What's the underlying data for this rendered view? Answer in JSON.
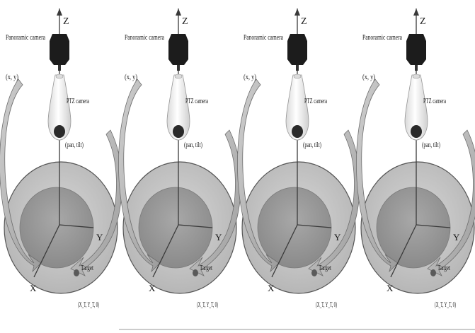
{
  "panels": [
    {
      "panoramic_camera": "Panoramic camera",
      "ptz_camera": "PTZ camera",
      "pixel_coords": "(x, y)",
      "pan_tilt": "(pan, tilt)",
      "target": "Target",
      "world_coords": "(X_T, Y_T, 0)",
      "axis_x": "X",
      "axis_y": "Y",
      "axis_z": "Z"
    },
    {
      "panoramic_camera": "Panoramic camera",
      "ptz_camera": "PTZ camera",
      "pixel_coords": "(x, y)",
      "pan_tilt": "(pan, tilt)",
      "target": "Target",
      "world_coords": "(X_T, Y_T, 0)",
      "axis_x": "X",
      "axis_y": "Y",
      "axis_z": "Z"
    },
    {
      "panoramic_camera": "Panoramic camera",
      "ptz_camera": "PTZ camera",
      "pixel_coords": "(x, y)",
      "pan_tilt": "(pan, tilt)",
      "target": "Target",
      "world_coords": "(X_T, Y_T, 0)",
      "axis_x": "X",
      "axis_y": "Y",
      "axis_z": "Z"
    },
    {
      "panoramic_camera": "Panoramic camera",
      "ptz_camera": "PTZ camera",
      "pixel_coords": "(x, y)",
      "pan_tilt": "(pan, tilt)",
      "target": "Target",
      "world_coords": "(X_T, Y_T, 0)",
      "axis_x": "X",
      "axis_y": "Y",
      "axis_z": "Z"
    }
  ],
  "colors": {
    "outer_disk": "#c4c4c4",
    "inner_disk": "#9a9a9a",
    "disk_edge": "#555555",
    "arrow_fill": "#bdbdbd",
    "arrow_edge": "#6e6e6e",
    "camera_dark": "#1c1c1c",
    "ptz_body": "#f4f4f4",
    "ptz_lens": "#2a2a2a",
    "target_dot": "#5a5a5a",
    "axis_line": "#3a3a3a"
  }
}
